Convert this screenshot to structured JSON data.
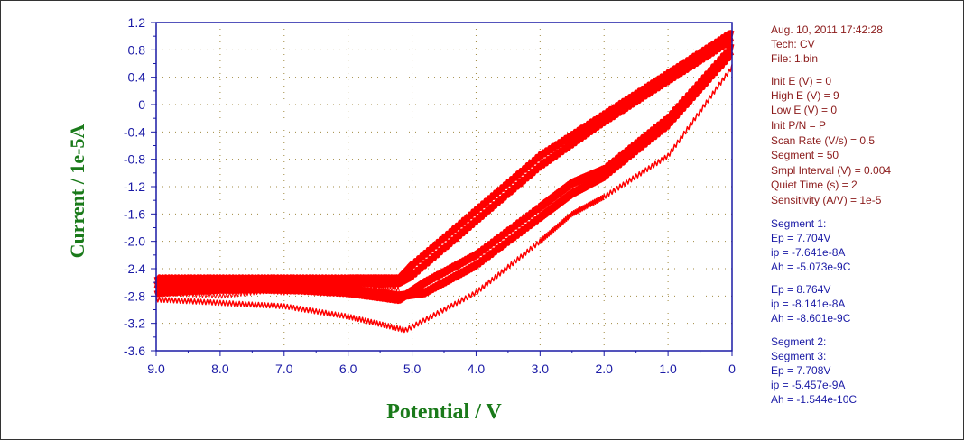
{
  "chart_data": {
    "type": "line",
    "title": "",
    "xlabel": "Potential / V",
    "ylabel": "Current / 1e-5A",
    "xlim": [
      9.0,
      0
    ],
    "ylim": [
      -3.6,
      1.2
    ],
    "x_reversed": true,
    "x_ticks": [
      "9.0",
      "8.0",
      "7.0",
      "6.0",
      "5.0",
      "4.0",
      "3.0",
      "2.0",
      "1.0",
      "0"
    ],
    "x_tick_values": [
      9,
      8,
      7,
      6,
      5,
      4,
      3,
      2,
      1,
      0
    ],
    "y_ticks": [
      "1.2",
      "0.8",
      "0.4",
      "0",
      "-0.4",
      "-0.8",
      "-1.2",
      "-1.6",
      "-2.0",
      "-2.4",
      "-2.8",
      "-3.2",
      "-3.6"
    ],
    "y_tick_values": [
      1.2,
      0.8,
      0.4,
      0,
      -0.4,
      -0.8,
      -1.2,
      -1.6,
      -2.0,
      -2.4,
      -2.8,
      -3.2,
      -3.6
    ],
    "grid": true,
    "line_color": "#ff0000",
    "series": [
      {
        "x": [
          0,
          1.0,
          2.0,
          3.0,
          4.0,
          5.0,
          5.2,
          6.0,
          7.0,
          8.0,
          9.0
        ],
        "y": [
          1.05,
          0.45,
          -0.15,
          -0.75,
          -1.55,
          -2.35,
          -2.55,
          -2.55,
          -2.55,
          -2.55,
          -2.55
        ]
      },
      {
        "x": [
          0,
          1.0,
          2.0,
          3.0,
          4.0,
          5.0,
          5.2,
          6.0,
          7.0,
          8.0,
          9.0
        ],
        "y": [
          0.95,
          0.35,
          -0.25,
          -0.9,
          -1.7,
          -2.5,
          -2.6,
          -2.6,
          -2.6,
          -2.6,
          -2.6
        ]
      },
      {
        "x": [
          0,
          1.0,
          2.0,
          2.5,
          3.0,
          4.0,
          4.8,
          5.2,
          6.0,
          7.0,
          8.0,
          9.0
        ],
        "y": [
          0.85,
          -0.2,
          -0.95,
          -1.15,
          -1.5,
          -2.2,
          -2.6,
          -2.85,
          -2.75,
          -2.7,
          -2.7,
          -2.75
        ]
      },
      {
        "x": [
          0,
          1.0,
          2.0,
          2.5,
          3.0,
          4.0,
          4.8,
          5.2,
          6.0,
          7.0,
          8.0,
          9.0
        ],
        "y": [
          0.75,
          -0.3,
          -1.05,
          -1.3,
          -1.65,
          -2.35,
          -2.75,
          -2.8,
          -2.7,
          -2.65,
          -2.6,
          -2.65
        ]
      },
      {
        "x": [
          0,
          1.0,
          2.0,
          2.5,
          3.0,
          4.0,
          5.1,
          6.0,
          7.0,
          8.0,
          9.0
        ],
        "y": [
          0.55,
          -0.75,
          -1.35,
          -1.6,
          -2.0,
          -2.75,
          -3.3,
          -3.1,
          -2.95,
          -2.9,
          -2.85
        ]
      },
      {
        "x": [
          5.2,
          6.0,
          7.0,
          8.0,
          9.0
        ],
        "y": [
          -2.7,
          -2.65,
          -2.75,
          -2.65,
          -2.7
        ]
      },
      {
        "x": [
          5.2,
          6.0,
          7.0,
          8.0,
          9.0
        ],
        "y": [
          -2.65,
          -2.75,
          -2.7,
          -2.8,
          -2.75
        ]
      }
    ]
  },
  "info": {
    "date": "Aug. 10, 2011   17:42:28",
    "tech": "Tech: CV",
    "file": "File: 1.bin",
    "init_e": "Init E (V) = 0",
    "high_e": "High E (V) = 9",
    "low_e": "Low E (V) = 0",
    "init_pn": "Init P/N = P",
    "scan_rate": "Scan Rate (V/s) = 0.5",
    "segment": "Segment = 50",
    "smpl_interval": "Smpl Interval (V) = 0.004",
    "quiet_time": "Quiet Time (s) = 2",
    "sensitivity": "Sensitivity (A/V) = 1e-5",
    "seg1_title": "Segment 1:",
    "seg1_ep1": "Ep = 7.704V",
    "seg1_ip1": "ip = -7.641e-8A",
    "seg1_ah1": "Ah = -5.073e-9C",
    "seg1_ep2": "Ep = 8.764V",
    "seg1_ip2": "ip = -8.141e-8A",
    "seg1_ah2": "Ah = -8.601e-9C",
    "seg2_title": "Segment 2:",
    "seg3_title": "Segment 3:",
    "seg3_ep": "Ep = 7.708V",
    "seg3_ip": "ip = -5.457e-9A",
    "seg3_ah": "Ah = -1.544e-10C"
  },
  "colors": {
    "axis": "#1a1aa6",
    "axis_title": "#1a7a1a",
    "info_params": "#8b1a1a",
    "info_results": "#1a1aa6",
    "grid": "#a08a40",
    "data": "#ff0000"
  }
}
